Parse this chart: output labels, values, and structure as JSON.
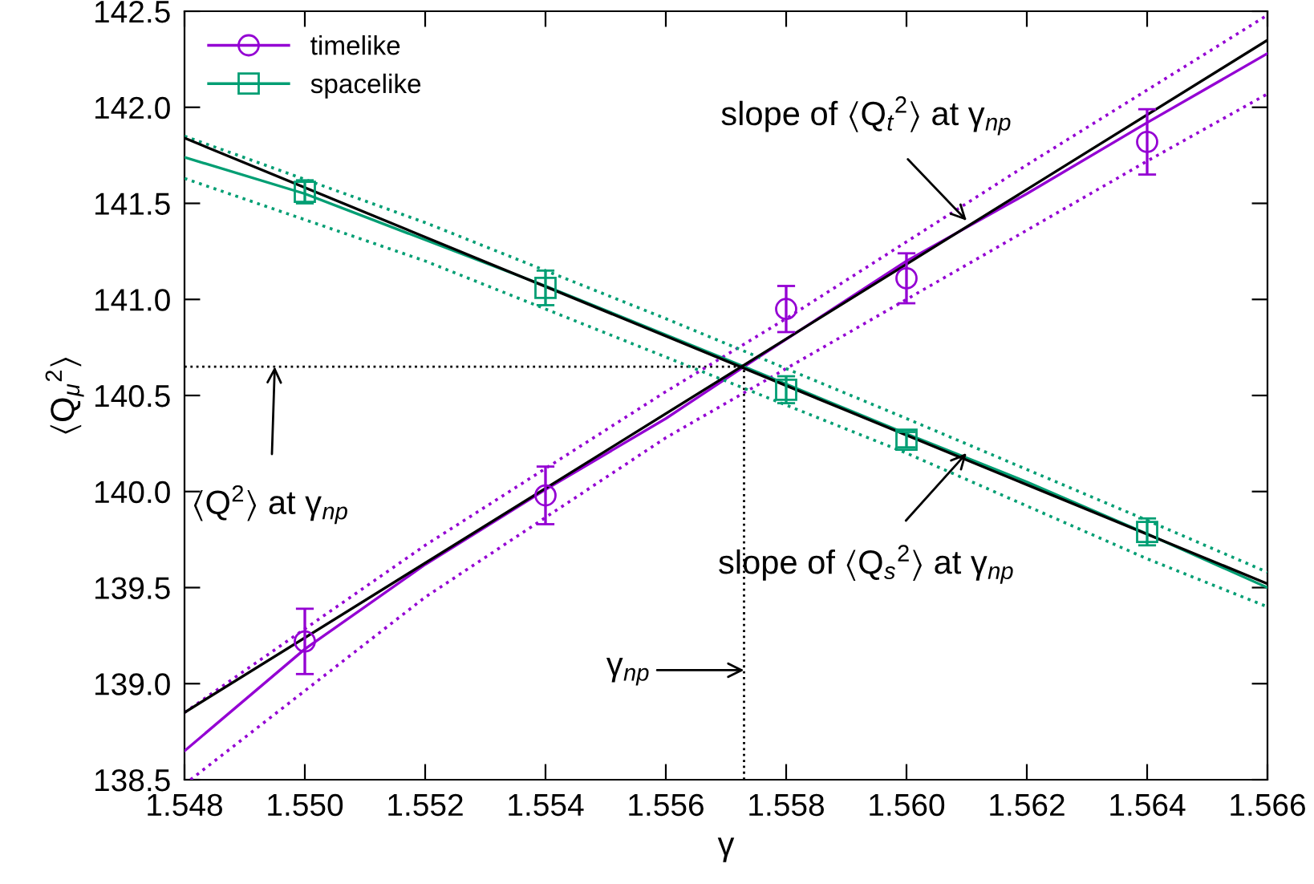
{
  "chart_data": {
    "type": "line",
    "xlabel": "γ",
    "ylabel": "⟨Q$_{μ}$$^{2}$⟩",
    "xlim": [
      1.548,
      1.566
    ],
    "ylim": [
      138.5,
      142.5
    ],
    "xticks": [
      1.548,
      {
        "value": 1.55,
        "label": "1.550"
      },
      1.552,
      1.554,
      1.556,
      1.558,
      {
        "value": 1.56,
        "label": "1.560"
      },
      1.562,
      1.564,
      1.566
    ],
    "yticks": [
      138.5,
      {
        "value": 139,
        "label": "139.0"
      },
      139.5,
      {
        "value": 140,
        "label": "140.0"
      },
      140.5,
      {
        "value": 141,
        "label": "141.0"
      },
      141.5,
      {
        "value": 142,
        "label": "142.0"
      },
      142.5
    ],
    "grid": false,
    "legend": "top left",
    "series": [
      {
        "name": "timelike",
        "type": "scatter",
        "marker": "circle",
        "color": "#9400d3",
        "x": [
          1.55,
          1.554,
          1.558,
          1.56,
          1.564
        ],
        "values": [
          139.22,
          139.98,
          140.95,
          141.11,
          141.82
        ],
        "errors": [
          0.17,
          0.15,
          0.12,
          0.13,
          0.17
        ]
      },
      {
        "name": "spacelike",
        "type": "scatter",
        "marker": "square",
        "color": "#009e73",
        "x": [
          1.55,
          1.554,
          1.558,
          1.56,
          1.564
        ],
        "values": [
          141.56,
          141.06,
          140.53,
          140.27,
          139.79
        ],
        "errors": [
          0.06,
          0.09,
          0.07,
          0.04,
          0.07
        ]
      },
      {
        "color": "#9400d3",
        "line_style": "solid",
        "x": [
          1.548,
          1.55,
          1.552,
          1.554,
          1.556,
          1.5573,
          1.56,
          1.562,
          1.564,
          1.566
        ],
        "values": [
          138.65,
          139.18,
          139.62,
          140.01,
          140.38,
          140.65,
          141.2,
          141.55,
          141.92,
          142.28
        ]
      },
      {
        "color": "#9400d3",
        "line_style": "dotted",
        "x": [
          1.548,
          1.552,
          1.556,
          1.558,
          1.562,
          1.566
        ],
        "values": [
          138.85,
          139.72,
          140.52,
          140.9,
          141.7,
          142.48
        ]
      },
      {
        "color": "#9400d3",
        "line_style": "dotted",
        "x": [
          1.5481,
          1.552,
          1.556,
          1.56,
          1.564,
          1.566
        ],
        "values": [
          138.5,
          139.45,
          140.28,
          141.0,
          141.72,
          142.07
        ]
      },
      {
        "color": "#009e73",
        "line_style": "solid",
        "x": [
          1.548,
          1.55,
          1.554,
          1.5573,
          1.56,
          1.562,
          1.564,
          1.566
        ],
        "values": [
          141.74,
          141.55,
          141.07,
          140.65,
          140.3,
          140.05,
          139.78,
          139.5
        ]
      },
      {
        "color": "#009e73",
        "line_style": "dotted",
        "x": [
          1.548,
          1.552,
          1.556,
          1.56,
          1.564,
          1.566
        ],
        "values": [
          141.85,
          141.4,
          140.9,
          140.38,
          139.85,
          139.58
        ]
      },
      {
        "color": "#009e73",
        "line_style": "dotted",
        "x": [
          1.548,
          1.552,
          1.556,
          1.56,
          1.564,
          1.566
        ],
        "values": [
          141.63,
          141.2,
          140.7,
          140.2,
          139.65,
          139.4
        ]
      },
      {
        "color": "#000000",
        "line_style": "solid",
        "x": [
          1.548,
          1.566
        ],
        "values": [
          138.85,
          142.35
        ]
      },
      {
        "color": "#000000",
        "line_style": "solid",
        "x": [
          1.548,
          1.566
        ],
        "values": [
          141.84,
          139.52
        ]
      }
    ],
    "ref_lines": [
      {
        "axis": "y",
        "value": 140.65,
        "color": "#000000",
        "line_style": "dotted"
      },
      {
        "axis": "x",
        "value": 1.5573,
        "color": "#000000",
        "line_style": "dotted"
      }
    ],
    "annotations": [
      {
        "text": "slope of ⟨Q$_{t}$$^{2}$⟩ at γ$_{np}$",
        "x": 1.561,
        "y": 141.41
      },
      {
        "text": "slope of ⟨Q$_{s}$$^{2}$⟩ at γ$_{np}$",
        "x": 1.561,
        "y": 140.2
      },
      {
        "text": "⟨Q$^{2}$⟩ at γ$_{np}$",
        "x": 1.5495,
        "y": 140.65
      },
      {
        "text": "γ$_{np}$",
        "x": 1.5573,
        "y": 139.07
      }
    ]
  }
}
